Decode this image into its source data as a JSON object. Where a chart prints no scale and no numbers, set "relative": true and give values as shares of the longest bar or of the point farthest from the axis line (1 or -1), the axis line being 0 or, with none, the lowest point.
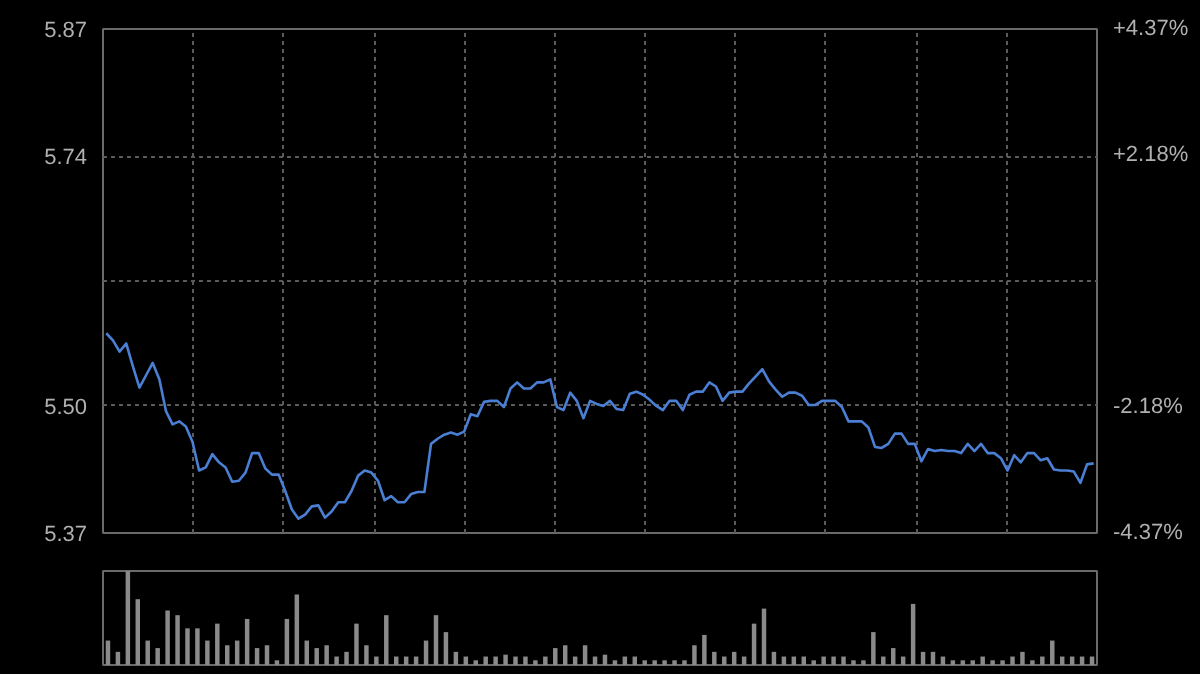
{
  "chart_data": [
    {
      "type": "line",
      "tick_labels": "y",
      "grid": true,
      "categories": [
        null,
        null,
        null,
        null,
        null,
        null,
        null,
        null,
        null,
        null,
        null,
        null,
        null,
        null,
        null,
        null,
        null,
        null,
        null,
        null,
        null,
        null,
        null,
        null,
        null,
        null,
        null,
        null,
        null,
        null,
        null,
        null,
        null,
        null,
        null,
        null,
        null,
        null,
        null,
        null,
        null,
        null,
        null,
        null,
        null,
        null,
        null,
        null,
        null,
        null,
        null,
        null,
        null,
        null,
        null,
        null,
        null,
        null,
        null,
        null,
        null,
        null,
        null,
        null,
        null,
        null,
        null,
        null,
        null,
        null,
        null,
        null,
        null,
        null,
        null,
        null,
        null,
        null,
        null,
        null,
        null,
        null,
        null,
        null,
        null,
        null,
        null,
        null,
        null,
        null,
        null,
        null,
        null,
        null,
        null,
        null,
        null,
        null,
        null,
        null,
        null,
        null,
        null,
        null,
        null,
        null,
        null,
        null,
        null,
        null,
        null,
        null,
        null,
        null,
        null,
        null,
        null,
        null,
        null,
        null,
        null,
        null,
        null,
        null,
        null,
        null,
        null,
        null,
        null,
        null,
        null,
        null,
        null,
        null,
        null,
        null,
        null,
        null,
        null,
        null,
        null,
        null,
        null,
        null,
        null,
        null,
        null,
        null,
        null,
        null
      ],
      "ylim": [
        5.374,
        5.866
      ],
      "yticks": [
        {
          "value": 5.866,
          "label": "5.87"
        },
        {
          "value": 5.742,
          "label": "5.74"
        },
        {
          "value": 5.62,
          "label": null
        },
        {
          "value": 5.498,
          "label": "5.50"
        },
        {
          "value": 5.374,
          "label": "5.37"
        }
      ],
      "y2lim": [
        -4.37,
        4.37
      ],
      "y2ticks": [
        {
          "value": 4.37,
          "label": "+4.37%"
        },
        {
          "value": 2.18,
          "label": "+2.18%"
        },
        {
          "value": 0,
          "label": null
        },
        {
          "value": -2.18,
          "label": "-2.18%"
        },
        {
          "value": -4.37,
          "label": "-4.37%"
        }
      ],
      "series": [
        {
          "color": "#4a7fd4",
          "values": [
            5.569,
            5.562,
            5.551,
            5.559,
            5.537,
            5.516,
            5.528,
            5.54,
            5.524,
            5.493,
            5.48,
            5.483,
            5.478,
            5.463,
            5.435,
            5.438,
            5.451,
            5.443,
            5.438,
            5.424,
            5.425,
            5.433,
            5.452,
            5.452,
            5.437,
            5.431,
            5.431,
            5.415,
            5.397,
            5.388,
            5.392,
            5.4,
            5.401,
            5.389,
            5.395,
            5.404,
            5.404,
            5.415,
            5.43,
            5.435,
            5.433,
            5.425,
            5.406,
            5.41,
            5.404,
            5.404,
            5.412,
            5.414,
            5.414,
            5.461,
            5.466,
            5.47,
            5.472,
            5.47,
            5.473,
            5.49,
            5.488,
            5.502,
            5.503,
            5.503,
            5.497,
            5.515,
            5.521,
            5.515,
            5.515,
            5.521,
            5.521,
            5.524,
            5.497,
            5.494,
            5.511,
            5.503,
            5.486,
            5.503,
            5.5,
            5.498,
            5.503,
            5.495,
            5.494,
            5.51,
            5.512,
            5.509,
            5.504,
            5.498,
            5.494,
            5.503,
            5.503,
            5.494,
            5.509,
            5.512,
            5.512,
            5.521,
            5.517,
            5.503,
            5.511,
            5.512,
            5.512,
            5.52,
            5.527,
            5.534,
            5.522,
            5.514,
            5.507,
            5.511,
            5.511,
            5.508,
            5.499,
            5.499,
            5.503,
            5.503,
            5.503,
            5.497,
            5.483,
            5.483,
            5.483,
            5.477,
            5.458,
            5.457,
            5.461,
            5.471,
            5.471,
            5.461,
            5.461,
            5.444,
            5.456,
            5.454,
            5.455,
            5.454,
            5.454,
            5.452,
            5.461,
            5.454,
            5.461,
            5.452,
            5.452,
            5.447,
            5.435,
            5.45,
            5.443,
            5.452,
            5.452,
            5.445,
            5.447,
            5.436,
            5.435,
            5.435,
            5.434,
            5.423,
            5.441,
            5.442
          ]
        }
      ]
    },
    {
      "type": "bar",
      "relative": true,
      "tick_labels": false,
      "categories": [
        null,
        null,
        null,
        null,
        null,
        null,
        null,
        null,
        null,
        null,
        null,
        null,
        null,
        null,
        null,
        null,
        null,
        null,
        null,
        null,
        null,
        null,
        null,
        null,
        null,
        null,
        null,
        null,
        null,
        null,
        null,
        null,
        null,
        null,
        null,
        null,
        null,
        null,
        null,
        null,
        null,
        null,
        null,
        null,
        null,
        null,
        null,
        null,
        null,
        null,
        null,
        null,
        null,
        null,
        null,
        null,
        null,
        null,
        null,
        null,
        null,
        null,
        null,
        null,
        null,
        null,
        null,
        null,
        null,
        null,
        null,
        null,
        null,
        null,
        null,
        null,
        null,
        null,
        null,
        null,
        null,
        null,
        null,
        null,
        null,
        null,
        null,
        null,
        null,
        null,
        null,
        null,
        null,
        null,
        null,
        null,
        null,
        null,
        null,
        null
      ],
      "series": [
        {
          "color": "#8a8a8a",
          "values": [
            0.26,
            0.14,
            1,
            0.7,
            0.26,
            0.18,
            0.58,
            0.53,
            0.39,
            0.39,
            0.26,
            0.44,
            0.21,
            0.26,
            0.49,
            0.18,
            0.21,
            0.05,
            0.49,
            0.75,
            0.26,
            0.18,
            0.21,
            0.09,
            0.14,
            0.44,
            0.21,
            0.09,
            0.53,
            0.09,
            0.09,
            0.09,
            0.26,
            0.53,
            0.35,
            0.14,
            0.09,
            0.05,
            0.09,
            0.09,
            0.11,
            0.09,
            0.09,
            0.05,
            0.09,
            0.18,
            0.21,
            0.09,
            0.21,
            0.09,
            0.11,
            0.05,
            0.09,
            0.09,
            0.05,
            0.05,
            0.05,
            0.05,
            0.05,
            0.21,
            0.32,
            0.14,
            0.09,
            0.14,
            0.09,
            0.44,
            0.6,
            0.14,
            0.09,
            0.09,
            0.09,
            0.05,
            0.09,
            0.09,
            0.09,
            0.05,
            0.05,
            0.35,
            0.09,
            0.18,
            0.09,
            0.65,
            0.14,
            0.14,
            0.09,
            0.05,
            0.05,
            0.05,
            0.09,
            0.05,
            0.05,
            0.09,
            0.14,
            0.05,
            0.09,
            0.26,
            0.09,
            0.09,
            0.09,
            0.09
          ]
        }
      ]
    }
  ]
}
